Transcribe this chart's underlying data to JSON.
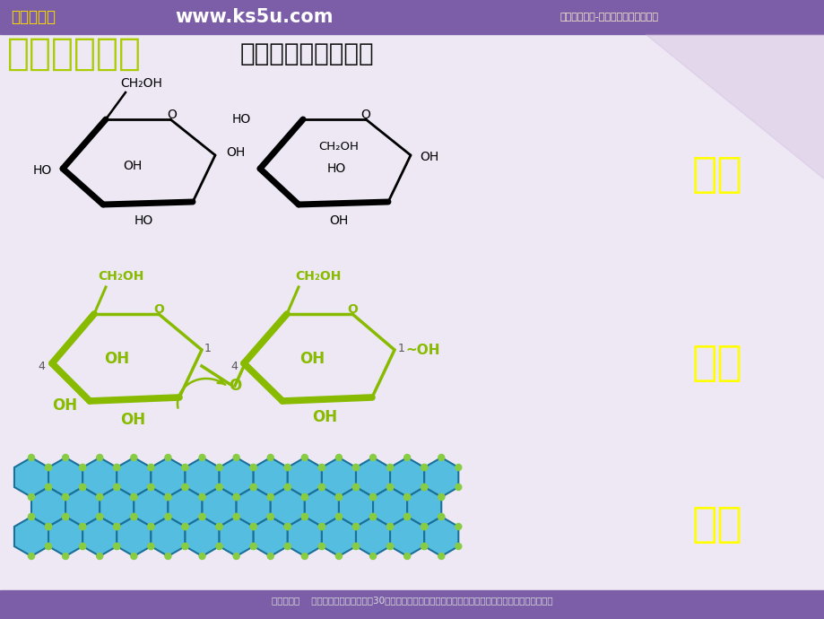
{
  "bg_top_color": "#7b5ea7",
  "bg_main_color": "#ede8f4",
  "bg_bottom_color": "#7b5ea7",
  "header_text1": "高考资源网",
  "header_text2": "www.ks5u.com",
  "header_text3": "【高考资源网-你身边的高考专家！】",
  "footer_text": "高考资源网    第一时间更新名校试题，30个省市区资源一网打尽！课件、教案、学案、素材、论文种类齐全。",
  "title_main": "细胞中的糖类",
  "title_main_color": "#aacc00",
  "title_sub": "（根据水解的产物）",
  "title_sub_color": "#111111",
  "label_dan_tang": "单糖",
  "label_er_tang": "二糖",
  "label_duo_tang": "多糖",
  "label_color": "#ffff00",
  "black": "#000000",
  "green": "#88bb00"
}
